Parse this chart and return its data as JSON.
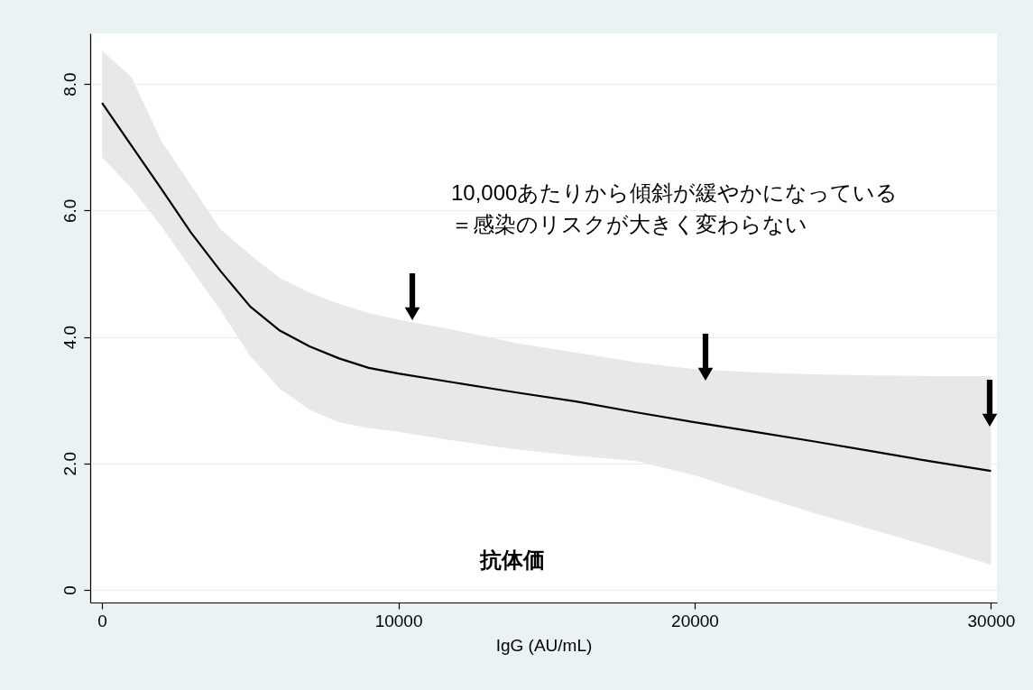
{
  "chart_data": {
    "type": "line",
    "xlabel": "IgG (AU/mL)",
    "x": [
      0,
      1000,
      2000,
      3000,
      4000,
      5000,
      6000,
      7000,
      8000,
      9000,
      10000,
      12000,
      14000,
      16000,
      18000,
      20000,
      22000,
      24000,
      26000,
      28000,
      30000
    ],
    "series": [
      {
        "color": "#000000",
        "values": [
          7.7,
          7.02,
          6.34,
          5.65,
          5.04,
          4.48,
          4.1,
          3.85,
          3.66,
          3.51,
          3.42,
          3.27,
          3.12,
          2.98,
          2.81,
          2.65,
          2.5,
          2.35,
          2.19,
          2.03,
          1.88
        ],
        "lower": [
          6.84,
          6.35,
          5.75,
          5.08,
          4.42,
          3.7,
          3.18,
          2.85,
          2.65,
          2.56,
          2.5,
          2.35,
          2.22,
          2.12,
          2.04,
          1.81,
          1.51,
          1.22,
          0.95,
          0.68,
          0.4
        ],
        "upper": [
          8.53,
          8.1,
          7.1,
          6.4,
          5.7,
          5.3,
          4.93,
          4.7,
          4.52,
          4.38,
          4.27,
          4.1,
          3.9,
          3.75,
          3.6,
          3.49,
          3.44,
          3.41,
          3.39,
          3.38,
          3.38
        ]
      }
    ],
    "xlim": [
      -400,
      30200
    ],
    "ylim": [
      -0.2,
      8.8
    ],
    "xticks": [
      0,
      10000,
      20000,
      30000
    ],
    "yticks": [
      0,
      {
        "value": 2,
        "label": "2.0"
      },
      {
        "value": 4,
        "label": "4.0"
      },
      {
        "value": 6,
        "label": "6.0"
      },
      {
        "value": 8,
        "label": "8.0"
      }
    ],
    "grid": "y",
    "annotations": [
      "10,000あたりから傾斜が緩やかになっている",
      "＝感染のリスクが大きく変わらない",
      "抗体価"
    ]
  }
}
